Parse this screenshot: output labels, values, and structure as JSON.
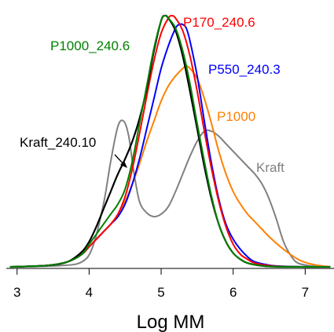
{
  "chart_data": {
    "type": "line",
    "xlabel": "Log MM",
    "ylabel": "",
    "xlim": [
      2.85,
      7.4
    ],
    "ylim": [
      0,
      1.0
    ],
    "y_axis_visible": false,
    "grid": false,
    "xticks": [
      3,
      4,
      5,
      6,
      7
    ],
    "xtick_labels": [
      "3",
      "4",
      "5",
      "6",
      "7"
    ],
    "series": [
      {
        "name": "Kraft",
        "color": "#808080",
        "x": [
          2.9,
          3.6,
          3.9,
          4.05,
          4.2,
          4.3,
          4.4,
          4.48,
          4.55,
          4.62,
          4.7,
          4.8,
          4.9,
          5.0,
          5.1,
          5.2,
          5.3,
          5.4,
          5.5,
          5.6,
          5.7,
          5.8,
          5.9,
          6.0,
          6.1,
          6.2,
          6.3,
          6.4,
          6.5,
          6.6,
          6.7,
          6.8,
          6.9,
          7.1,
          7.35
        ],
        "y": [
          0.0,
          0.005,
          0.02,
          0.08,
          0.25,
          0.42,
          0.56,
          0.58,
          0.52,
          0.38,
          0.26,
          0.215,
          0.2,
          0.21,
          0.24,
          0.3,
          0.37,
          0.44,
          0.5,
          0.54,
          0.54,
          0.52,
          0.49,
          0.46,
          0.43,
          0.4,
          0.37,
          0.33,
          0.27,
          0.19,
          0.1,
          0.045,
          0.015,
          0.003,
          0.0
        ]
      },
      {
        "name": "P1000",
        "color": "#ff8000",
        "x": [
          2.9,
          3.4,
          3.7,
          3.9,
          4.0,
          4.1,
          4.2,
          4.3,
          4.4,
          4.5,
          4.6,
          4.7,
          4.8,
          4.9,
          5.0,
          5.1,
          5.2,
          5.3,
          5.35,
          5.4,
          5.5,
          5.6,
          5.7,
          5.8,
          5.9,
          6.0,
          6.1,
          6.2,
          6.3,
          6.4,
          6.5,
          6.7,
          6.9,
          7.1,
          7.35
        ],
        "y": [
          0.0,
          0.005,
          0.02,
          0.05,
          0.08,
          0.11,
          0.14,
          0.17,
          0.21,
          0.26,
          0.33,
          0.41,
          0.5,
          0.58,
          0.66,
          0.72,
          0.76,
          0.79,
          0.8,
          0.79,
          0.75,
          0.67,
          0.57,
          0.46,
          0.37,
          0.3,
          0.25,
          0.21,
          0.18,
          0.15,
          0.12,
          0.07,
          0.03,
          0.01,
          0.0
        ]
      },
      {
        "name": "P550_240.3",
        "color": "#0000ff",
        "x": [
          2.9,
          3.4,
          3.7,
          3.9,
          4.0,
          4.1,
          4.2,
          4.3,
          4.4,
          4.5,
          4.6,
          4.7,
          4.8,
          4.9,
          5.0,
          5.1,
          5.2,
          5.25,
          5.3,
          5.35,
          5.4,
          5.5,
          5.6,
          5.7,
          5.8,
          5.9,
          6.0,
          6.1,
          6.2,
          6.3,
          6.5,
          6.7,
          7.0,
          7.35
        ],
        "y": [
          0.0,
          0.005,
          0.02,
          0.05,
          0.08,
          0.11,
          0.14,
          0.17,
          0.2,
          0.25,
          0.33,
          0.43,
          0.55,
          0.67,
          0.79,
          0.88,
          0.95,
          0.965,
          0.965,
          0.95,
          0.9,
          0.76,
          0.58,
          0.41,
          0.27,
          0.17,
          0.11,
          0.07,
          0.04,
          0.02,
          0.007,
          0.002,
          0.0,
          0.0
        ]
      },
      {
        "name": "P170_240.6",
        "color": "#ff0000",
        "x": [
          2.9,
          3.4,
          3.7,
          3.9,
          4.0,
          4.1,
          4.2,
          4.3,
          4.4,
          4.5,
          4.6,
          4.7,
          4.8,
          4.9,
          5.0,
          5.1,
          5.15,
          5.2,
          5.3,
          5.4,
          5.5,
          5.6,
          5.7,
          5.8,
          5.9,
          6.0,
          6.1,
          6.2,
          6.3,
          6.5,
          6.7,
          7.0,
          7.35
        ],
        "y": [
          0.0,
          0.005,
          0.02,
          0.05,
          0.08,
          0.11,
          0.14,
          0.17,
          0.21,
          0.28,
          0.39,
          0.53,
          0.68,
          0.82,
          0.93,
          0.99,
          1.0,
          0.99,
          0.94,
          0.84,
          0.7,
          0.54,
          0.39,
          0.26,
          0.16,
          0.09,
          0.05,
          0.03,
          0.015,
          0.005,
          0.001,
          0.0,
          0.0
        ]
      },
      {
        "name": "Kraft_240.10",
        "color": "#000000",
        "x": [
          2.9,
          3.4,
          3.7,
          3.9,
          4.0,
          4.1,
          4.2,
          4.3,
          4.4,
          4.5,
          4.6,
          4.7,
          4.8,
          4.9,
          5.0,
          5.05,
          5.1,
          5.2,
          5.3,
          5.4,
          5.5,
          5.6,
          5.7,
          5.8,
          5.9,
          6.0,
          6.1,
          6.2,
          6.4,
          6.6,
          7.0,
          7.35
        ],
        "y": [
          0.0,
          0.005,
          0.02,
          0.06,
          0.1,
          0.16,
          0.23,
          0.3,
          0.37,
          0.43,
          0.5,
          0.59,
          0.71,
          0.86,
          0.98,
          1.0,
          0.99,
          0.94,
          0.84,
          0.7,
          0.55,
          0.4,
          0.27,
          0.17,
          0.1,
          0.055,
          0.03,
          0.015,
          0.004,
          0.001,
          0.0,
          0.0
        ]
      },
      {
        "name": "P1000_240.6",
        "color": "#008000",
        "x": [
          2.9,
          3.4,
          3.7,
          3.9,
          4.0,
          4.1,
          4.2,
          4.3,
          4.4,
          4.5,
          4.6,
          4.7,
          4.8,
          4.9,
          5.0,
          5.05,
          5.1,
          5.2,
          5.3,
          5.4,
          5.5,
          5.6,
          5.7,
          5.8,
          5.9,
          6.0,
          6.1,
          6.2,
          6.4,
          6.6,
          7.0,
          7.35
        ],
        "y": [
          0.0,
          0.005,
          0.02,
          0.05,
          0.09,
          0.13,
          0.17,
          0.21,
          0.25,
          0.31,
          0.42,
          0.57,
          0.72,
          0.87,
          0.98,
          1.0,
          0.99,
          0.95,
          0.86,
          0.73,
          0.57,
          0.42,
          0.28,
          0.17,
          0.1,
          0.055,
          0.03,
          0.015,
          0.004,
          0.001,
          0.0,
          0.0
        ]
      }
    ],
    "annotations": [
      {
        "text": "P1000_240.6",
        "color": "#008000"
      },
      {
        "text": "P170_240.6",
        "color": "#ff0000"
      },
      {
        "text": "P550_240.3",
        "color": "#0000ff"
      },
      {
        "text": "P1000",
        "color": "#ff8000"
      },
      {
        "text": "Kraft_240.10",
        "color": "#000000"
      },
      {
        "text": "Kraft",
        "color": "#808080"
      }
    ]
  }
}
